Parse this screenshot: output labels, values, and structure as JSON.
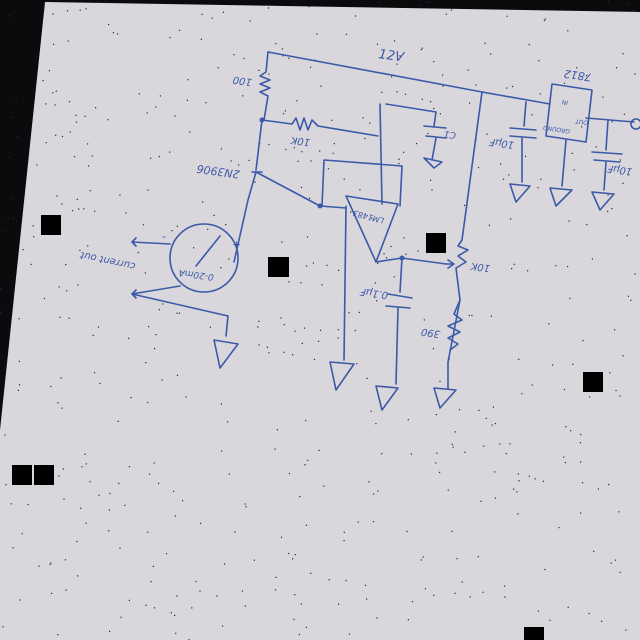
{
  "schematic": {
    "labels": {
      "supply": "12V",
      "r_top": "100",
      "r_bias": "10K",
      "transistor": "2N3906",
      "cap_c1": "C1",
      "opamp": "LM1483",
      "meter": "0-20mA",
      "meter_plus": "+",
      "meter_minus": "-",
      "current_out": "current out",
      "cap_filter": "0.1µF",
      "pot": "10K",
      "r_low": "390",
      "cap_in": "10µF",
      "reg_name": "7812",
      "reg_in": "IN",
      "reg_out": "OUT",
      "reg_gnd": "GROUND",
      "cap_out": "10µF"
    },
    "colors": {
      "ink": "#3a5aa8",
      "paper": "#d9d6dc",
      "background": "#0b0b0d"
    }
  }
}
